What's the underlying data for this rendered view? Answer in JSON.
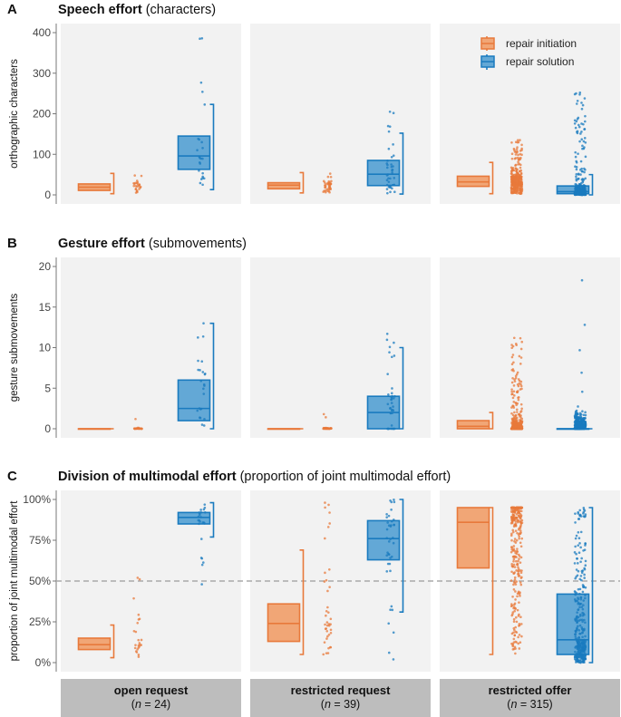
{
  "colors": {
    "initiation_fill": "#f1a676",
    "initiation_stroke": "#e8793b",
    "solution_fill": "#63a8d6",
    "solution_stroke": "#1a7bbf",
    "panel_bg": "#f2f2f2",
    "strip_bg": "#bdbdbd",
    "ref_line": "#aaaaaa"
  },
  "legend": {
    "items": [
      {
        "key": "initiation",
        "label": "repair initiation"
      },
      {
        "key": "solution",
        "label": "repair solution"
      }
    ]
  },
  "facets": [
    {
      "title": "open request",
      "n_label": "n",
      "n_text": " = 24)",
      "open_paren": "("
    },
    {
      "title": "restricted request",
      "n_label": "n",
      "n_text": " = 39)",
      "open_paren": "("
    },
    {
      "title": "restricted offer",
      "n_label": "n",
      "n_text": " = 315)",
      "open_paren": "("
    }
  ],
  "chart_data": [
    {
      "type": "box",
      "panel_letter": "A",
      "title_bold": "Speech effort",
      "title_rest": " (characters)",
      "ylabel": "orthographic characters",
      "ylim": [
        0,
        400
      ],
      "yticks": [
        0,
        100,
        200,
        300,
        400
      ],
      "tick_labels": [
        "0",
        "100",
        "200",
        "300",
        "400"
      ],
      "boxes": [
        {
          "facet": "open request",
          "series": "initiation",
          "q1": 11,
          "median": 19,
          "q3": 27,
          "whisker_low": 3,
          "whisker_high": 53,
          "n_points": 24
        },
        {
          "facet": "open request",
          "series": "solution",
          "q1": 63,
          "median": 96,
          "q3": 145,
          "whisker_low": 13,
          "whisker_high": 223,
          "n_points": 24,
          "max": 386
        },
        {
          "facet": "restricted request",
          "series": "initiation",
          "q1": 15,
          "median": 24,
          "q3": 30,
          "whisker_low": 5,
          "whisker_high": 55,
          "n_points": 39
        },
        {
          "facet": "restricted request",
          "series": "solution",
          "q1": 23,
          "median": 51,
          "q3": 85,
          "whisker_low": 2,
          "whisker_high": 152,
          "n_points": 39,
          "max": 205
        },
        {
          "facet": "restricted offer",
          "series": "initiation",
          "q1": 21,
          "median": 32,
          "q3": 46,
          "whisker_low": 3,
          "whisker_high": 80,
          "n_points": 315,
          "max": 135
        },
        {
          "facet": "restricted offer",
          "series": "solution",
          "q1": 3,
          "median": 8,
          "q3": 22,
          "whisker_low": 0,
          "whisker_high": 50,
          "n_points": 315,
          "max": 252
        }
      ]
    },
    {
      "type": "box",
      "panel_letter": "B",
      "title_bold": "Gesture effort",
      "title_rest": " (submovements)",
      "ylabel": "gesture submovements",
      "ylim": [
        0,
        20
      ],
      "yticks": [
        0,
        5,
        10,
        15,
        20
      ],
      "tick_labels": [
        "0",
        "5",
        "10",
        "15",
        "20"
      ],
      "boxes": [
        {
          "facet": "open request",
          "series": "initiation",
          "q1": 0,
          "median": 0,
          "q3": 0,
          "whisker_low": 0,
          "whisker_high": 0,
          "n_points": 24,
          "max": 1.2
        },
        {
          "facet": "open request",
          "series": "solution",
          "q1": 1,
          "median": 2.5,
          "q3": 6,
          "whisker_low": 0,
          "whisker_high": 13,
          "n_points": 24,
          "max": 13
        },
        {
          "facet": "restricted request",
          "series": "initiation",
          "q1": 0,
          "median": 0,
          "q3": 0,
          "whisker_low": 0,
          "whisker_high": 0,
          "n_points": 39,
          "max": 1.8
        },
        {
          "facet": "restricted request",
          "series": "solution",
          "q1": 0,
          "median": 2,
          "q3": 4,
          "whisker_low": 0,
          "whisker_high": 10,
          "n_points": 39,
          "max": 11.7
        },
        {
          "facet": "restricted offer",
          "series": "initiation",
          "q1": 0,
          "median": 0.3,
          "q3": 1,
          "whisker_low": 0,
          "whisker_high": 2,
          "n_points": 315,
          "max": 11.2
        },
        {
          "facet": "restricted offer",
          "series": "solution",
          "q1": 0,
          "median": 0,
          "q3": 0,
          "whisker_low": 0,
          "whisker_high": 0,
          "n_points": 315,
          "max": 18.3
        }
      ]
    },
    {
      "type": "box",
      "panel_letter": "C",
      "title_bold": "Division of multimodal effort",
      "title_rest": " (proportion of joint multimodal effort)",
      "ylabel": "proportion of joint multimodal effort",
      "ylim": [
        0,
        100
      ],
      "yticks": [
        0,
        25,
        50,
        75,
        100
      ],
      "tick_labels": [
        "0%",
        "25%",
        "50%",
        "75%",
        "100%"
      ],
      "reference_line": 50,
      "boxes": [
        {
          "facet": "open request",
          "series": "initiation",
          "q1": 8,
          "median": 11,
          "q3": 15,
          "whisker_low": 3,
          "whisker_high": 23,
          "n_points": 24,
          "max": 52
        },
        {
          "facet": "open request",
          "series": "solution",
          "q1": 85,
          "median": 89,
          "q3": 92,
          "whisker_low": 77,
          "whisker_high": 98,
          "n_points": 24,
          "min": 48
        },
        {
          "facet": "restricted request",
          "series": "initiation",
          "q1": 13,
          "median": 24,
          "q3": 36,
          "whisker_low": 5,
          "whisker_high": 69,
          "n_points": 39,
          "max": 98
        },
        {
          "facet": "restricted request",
          "series": "solution",
          "q1": 63,
          "median": 76,
          "q3": 87,
          "whisker_low": 31,
          "whisker_high": 100,
          "n_points": 39,
          "min": 2
        },
        {
          "facet": "restricted offer",
          "series": "initiation",
          "q1": 58,
          "median": 86,
          "q3": 95,
          "whisker_low": 5,
          "whisker_high": 95,
          "n_points": 315
        },
        {
          "facet": "restricted offer",
          "series": "solution",
          "q1": 5,
          "median": 14,
          "q3": 42,
          "whisker_low": 0,
          "whisker_high": 95,
          "n_points": 315
        }
      ]
    }
  ]
}
